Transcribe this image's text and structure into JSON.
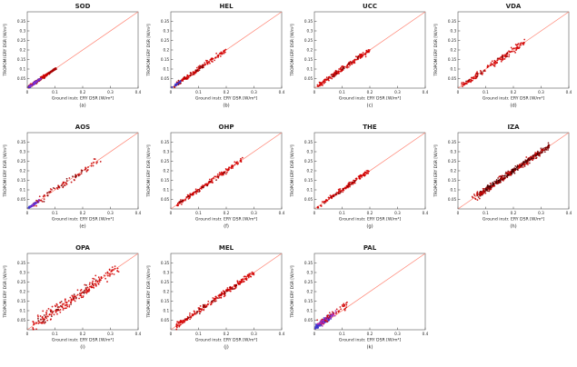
{
  "figure": {
    "background": "#ffffff"
  },
  "axes_common": {
    "xlabel": "Ground instr. ERY DSR [W/m²]",
    "ylabel": "TROPOMI ERY DSR [W/m²]",
    "xlim": [
      0,
      0.4
    ],
    "ylim": [
      0,
      0.4
    ],
    "xticks": [
      0,
      0.1,
      0.2,
      0.3,
      0.4
    ],
    "yticks": [
      0.05,
      0.1,
      0.15,
      0.2,
      0.25,
      0.3,
      0.35
    ],
    "grid": false,
    "identity_line": {
      "show": true,
      "color": "#ff7f6e"
    }
  },
  "chart_data": [
    {
      "type": "scatter",
      "title": "SOD",
      "panel_label": "(a)",
      "seed": 1,
      "clusters": [
        {
          "n": 140,
          "x": [
            0.005,
            0.105
          ],
          "spread": 0.007,
          "bias": 0,
          "color": "#a80000"
        },
        {
          "n": 60,
          "x": [
            0.005,
            0.075
          ],
          "spread": 0.008,
          "bias": 0,
          "color": "#d10000"
        },
        {
          "n": 45,
          "x": [
            0.004,
            0.05
          ],
          "spread": 0.006,
          "bias": 0,
          "color": "#3a35cf"
        },
        {
          "n": 25,
          "x": [
            0.006,
            0.05
          ],
          "spread": 0.006,
          "bias": 0,
          "color": "#8a2bd0"
        }
      ]
    },
    {
      "type": "scatter",
      "title": "HEL",
      "panel_label": "(b)",
      "seed": 2,
      "clusters": [
        {
          "n": 150,
          "x": [
            0.01,
            0.2
          ],
          "spread": 0.011,
          "bias": 0,
          "color": "#d10000"
        },
        {
          "n": 30,
          "x": [
            0.01,
            0.12
          ],
          "spread": 0.009,
          "bias": 0,
          "color": "#8a0000"
        },
        {
          "n": 22,
          "x": [
            0.004,
            0.04
          ],
          "spread": 0.006,
          "bias": 0,
          "color": "#3a35cf"
        }
      ]
    },
    {
      "type": "scatter",
      "title": "UCC",
      "panel_label": "(c)",
      "seed": 3,
      "clusters": [
        {
          "n": 170,
          "x": [
            0.01,
            0.2
          ],
          "spread": 0.013,
          "bias": 0,
          "color": "#d10000"
        },
        {
          "n": 18,
          "x": [
            0.03,
            0.16
          ],
          "spread": 0.01,
          "bias": 0,
          "color": "#7a0000"
        }
      ]
    },
    {
      "type": "scatter",
      "title": "VDA",
      "panel_label": "(d)",
      "seed": 4,
      "clusters": [
        {
          "n": 150,
          "x": [
            0.01,
            0.24
          ],
          "spread": 0.014,
          "bias": 0,
          "color": "#d10000"
        },
        {
          "n": 12,
          "x": [
            0.02,
            0.18
          ],
          "spread": 0.012,
          "bias": 0,
          "color": "#7a0000"
        }
      ]
    },
    {
      "type": "scatter",
      "title": "AOS",
      "panel_label": "(e)",
      "seed": 5,
      "clusters": [
        {
          "n": 75,
          "x": [
            0.02,
            0.27
          ],
          "spread": 0.016,
          "bias": 0,
          "color": "#c40000"
        },
        {
          "n": 20,
          "x": [
            0.02,
            0.2
          ],
          "spread": 0.014,
          "bias": 0,
          "color": "#7a0000"
        },
        {
          "n": 35,
          "x": [
            0.003,
            0.035
          ],
          "spread": 0.005,
          "bias": 0,
          "color": "#3a35cf"
        },
        {
          "n": 15,
          "x": [
            0.005,
            0.045
          ],
          "spread": 0.006,
          "bias": 0,
          "color": "#8a2bd0"
        }
      ]
    },
    {
      "type": "scatter",
      "title": "OHP",
      "panel_label": "(f)",
      "seed": 6,
      "clusters": [
        {
          "n": 160,
          "x": [
            0.02,
            0.26
          ],
          "spread": 0.011,
          "bias": 0,
          "color": "#d10000"
        },
        {
          "n": 20,
          "x": [
            0.03,
            0.2
          ],
          "spread": 0.01,
          "bias": 0,
          "color": "#7a0000"
        }
      ]
    },
    {
      "type": "scatter",
      "title": "THE",
      "panel_label": "(g)",
      "seed": 7,
      "clusters": [
        {
          "n": 140,
          "x": [
            0.01,
            0.2
          ],
          "spread": 0.01,
          "bias": 0,
          "color": "#d10000"
        },
        {
          "n": 15,
          "x": [
            0.02,
            0.15
          ],
          "spread": 0.009,
          "bias": 0,
          "color": "#7a0000"
        }
      ]
    },
    {
      "type": "scatter",
      "title": "IZA",
      "panel_label": "(h)",
      "seed": 8,
      "clusters": [
        {
          "n": 260,
          "x": [
            0.07,
            0.33
          ],
          "spread": 0.013,
          "bias": 0,
          "color": "#7a0000"
        },
        {
          "n": 130,
          "x": [
            0.05,
            0.31
          ],
          "spread": 0.016,
          "bias": 0,
          "color": "#c40000"
        },
        {
          "n": 60,
          "x": [
            0.1,
            0.3
          ],
          "spread": 0.01,
          "bias": 0,
          "color": "#3d0000"
        }
      ]
    },
    {
      "type": "scatter",
      "title": "OPA",
      "panel_label": "(i)",
      "seed": 9,
      "clusters": [
        {
          "n": 200,
          "x": [
            0.02,
            0.33
          ],
          "spread": 0.028,
          "bias": 0,
          "color": "#d10000"
        },
        {
          "n": 30,
          "x": [
            0.03,
            0.25
          ],
          "spread": 0.02,
          "bias": 0,
          "color": "#7a0000"
        }
      ]
    },
    {
      "type": "scatter",
      "title": "MEL",
      "panel_label": "(j)",
      "seed": 10,
      "clusters": [
        {
          "n": 220,
          "x": [
            0.02,
            0.3
          ],
          "spread": 0.014,
          "bias": 0,
          "color": "#d10000"
        },
        {
          "n": 25,
          "x": [
            0.04,
            0.25
          ],
          "spread": 0.012,
          "bias": 0,
          "color": "#7a0000"
        }
      ]
    },
    {
      "type": "scatter",
      "title": "PAL",
      "panel_label": "(k)",
      "seed": 11,
      "clusters": [
        {
          "n": 110,
          "x": [
            0.003,
            0.07
          ],
          "spread": 0.013,
          "bias": 0.012,
          "color": "#6a5acd"
        },
        {
          "n": 70,
          "x": [
            0.003,
            0.06
          ],
          "spread": 0.01,
          "bias": 0.008,
          "color": "#3a35cf"
        },
        {
          "n": 55,
          "x": [
            0.01,
            0.12
          ],
          "spread": 0.02,
          "bias": 0.015,
          "color": "#d10000"
        },
        {
          "n": 30,
          "x": [
            0.01,
            0.08
          ],
          "spread": 0.015,
          "bias": 0.01,
          "color": "#b428b4"
        }
      ]
    }
  ]
}
